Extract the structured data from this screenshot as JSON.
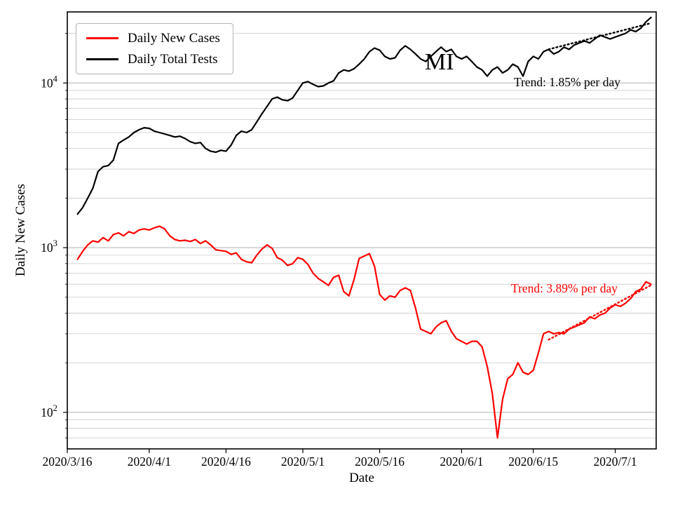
{
  "figure": {
    "background": "#ffffff",
    "axes_color": "#000000",
    "grid_major_color": "#b0b0b0",
    "grid_minor_color": "#c9c9c9"
  },
  "chart_data": {
    "type": "line",
    "state_label": "MI",
    "xlabel": "Date",
    "ylabel": "Daily New Cases",
    "y_scale": "log",
    "x_range": [
      0,
      115
    ],
    "y_range": [
      60,
      27000
    ],
    "grid": {
      "horizontal": true,
      "vertical": false,
      "minor": true
    },
    "legend_position": "upper-left",
    "x_ticks": [
      {
        "day": 0,
        "label": "2020/3/16"
      },
      {
        "day": 16,
        "label": "2020/4/1"
      },
      {
        "day": 31,
        "label": "2020/4/16"
      },
      {
        "day": 46,
        "label": "2020/5/1"
      },
      {
        "day": 61,
        "label": "2020/5/16"
      },
      {
        "day": 77,
        "label": "2020/6/1"
      },
      {
        "day": 91,
        "label": "2020/6/15"
      },
      {
        "day": 107,
        "label": "2020/7/1"
      }
    ],
    "y_ticks": [
      {
        "value": 100,
        "base": "10",
        "exp": "2"
      },
      {
        "value": 1000,
        "base": "10",
        "exp": "3"
      },
      {
        "value": 10000,
        "base": "10",
        "exp": "4"
      }
    ],
    "series": [
      {
        "name": "Daily New Cases",
        "color": "#ff0000",
        "x_unit": "days since 2020/3/16",
        "points": [
          [
            2,
            850
          ],
          [
            3,
            950
          ],
          [
            4,
            1040
          ],
          [
            5,
            1100
          ],
          [
            6,
            1080
          ],
          [
            7,
            1150
          ],
          [
            8,
            1100
          ],
          [
            9,
            1200
          ],
          [
            10,
            1230
          ],
          [
            11,
            1180
          ],
          [
            12,
            1250
          ],
          [
            13,
            1220
          ],
          [
            14,
            1280
          ],
          [
            15,
            1300
          ],
          [
            16,
            1280
          ],
          [
            17,
            1320
          ],
          [
            18,
            1350
          ],
          [
            19,
            1300
          ],
          [
            20,
            1180
          ],
          [
            21,
            1120
          ],
          [
            22,
            1100
          ],
          [
            23,
            1110
          ],
          [
            24,
            1090
          ],
          [
            25,
            1120
          ],
          [
            26,
            1060
          ],
          [
            27,
            1100
          ],
          [
            28,
            1040
          ],
          [
            29,
            970
          ],
          [
            30,
            960
          ],
          [
            31,
            950
          ],
          [
            32,
            910
          ],
          [
            33,
            930
          ],
          [
            34,
            850
          ],
          [
            35,
            820
          ],
          [
            36,
            810
          ],
          [
            37,
            900
          ],
          [
            38,
            980
          ],
          [
            39,
            1040
          ],
          [
            40,
            990
          ],
          [
            41,
            870
          ],
          [
            42,
            840
          ],
          [
            43,
            780
          ],
          [
            44,
            800
          ],
          [
            45,
            870
          ],
          [
            46,
            850
          ],
          [
            47,
            790
          ],
          [
            48,
            700
          ],
          [
            49,
            650
          ],
          [
            50,
            620
          ],
          [
            51,
            590
          ],
          [
            52,
            660
          ],
          [
            53,
            680
          ],
          [
            54,
            540
          ],
          [
            55,
            510
          ],
          [
            56,
            640
          ],
          [
            57,
            860
          ],
          [
            58,
            890
          ],
          [
            59,
            920
          ],
          [
            60,
            770
          ],
          [
            61,
            520
          ],
          [
            62,
            480
          ],
          [
            63,
            510
          ],
          [
            64,
            500
          ],
          [
            65,
            550
          ],
          [
            66,
            570
          ],
          [
            67,
            550
          ],
          [
            68,
            430
          ],
          [
            69,
            320
          ],
          [
            70,
            310
          ],
          [
            71,
            300
          ],
          [
            72,
            330
          ],
          [
            73,
            350
          ],
          [
            74,
            360
          ],
          [
            75,
            310
          ],
          [
            76,
            280
          ],
          [
            77,
            270
          ],
          [
            78,
            260
          ],
          [
            79,
            270
          ],
          [
            80,
            270
          ],
          [
            81,
            250
          ],
          [
            82,
            190
          ],
          [
            83,
            130
          ],
          [
            84,
            70
          ],
          [
            85,
            120
          ],
          [
            86,
            160
          ],
          [
            87,
            170
          ],
          [
            88,
            200
          ],
          [
            89,
            175
          ],
          [
            90,
            170
          ],
          [
            91,
            180
          ],
          [
            92,
            230
          ],
          [
            93,
            300
          ],
          [
            94,
            310
          ],
          [
            95,
            300
          ],
          [
            96,
            305
          ],
          [
            97,
            300
          ],
          [
            98,
            320
          ],
          [
            99,
            330
          ],
          [
            100,
            340
          ],
          [
            101,
            350
          ],
          [
            102,
            380
          ],
          [
            103,
            370
          ],
          [
            104,
            390
          ],
          [
            105,
            400
          ],
          [
            106,
            430
          ],
          [
            107,
            450
          ],
          [
            108,
            440
          ],
          [
            109,
            460
          ],
          [
            110,
            490
          ],
          [
            111,
            540
          ],
          [
            112,
            560
          ],
          [
            113,
            620
          ],
          [
            114,
            600
          ]
        ]
      },
      {
        "name": "Daily Total Tests",
        "color": "#000000",
        "x_unit": "days since 2020/3/16",
        "points": [
          [
            2,
            1600
          ],
          [
            3,
            1750
          ],
          [
            4,
            2000
          ],
          [
            5,
            2300
          ],
          [
            6,
            2900
          ],
          [
            7,
            3100
          ],
          [
            8,
            3150
          ],
          [
            9,
            3400
          ],
          [
            10,
            4300
          ],
          [
            11,
            4500
          ],
          [
            12,
            4700
          ],
          [
            13,
            5000
          ],
          [
            14,
            5200
          ],
          [
            15,
            5350
          ],
          [
            16,
            5300
          ],
          [
            17,
            5100
          ],
          [
            18,
            5000
          ],
          [
            19,
            4900
          ],
          [
            20,
            4800
          ],
          [
            21,
            4700
          ],
          [
            22,
            4750
          ],
          [
            23,
            4600
          ],
          [
            24,
            4400
          ],
          [
            25,
            4300
          ],
          [
            26,
            4350
          ],
          [
            27,
            4000
          ],
          [
            28,
            3850
          ],
          [
            29,
            3800
          ],
          [
            30,
            3900
          ],
          [
            31,
            3850
          ],
          [
            32,
            4200
          ],
          [
            33,
            4800
          ],
          [
            34,
            5100
          ],
          [
            35,
            5000
          ],
          [
            36,
            5200
          ],
          [
            37,
            5800
          ],
          [
            38,
            6500
          ],
          [
            39,
            7200
          ],
          [
            40,
            8000
          ],
          [
            41,
            8200
          ],
          [
            42,
            7900
          ],
          [
            43,
            7800
          ],
          [
            44,
            8100
          ],
          [
            45,
            9000
          ],
          [
            46,
            10000
          ],
          [
            47,
            10200
          ],
          [
            48,
            9800
          ],
          [
            49,
            9500
          ],
          [
            50,
            9600
          ],
          [
            51,
            10000
          ],
          [
            52,
            10300
          ],
          [
            53,
            11500
          ],
          [
            54,
            12000
          ],
          [
            55,
            11800
          ],
          [
            56,
            12200
          ],
          [
            57,
            13000
          ],
          [
            58,
            14000
          ],
          [
            59,
            15500
          ],
          [
            60,
            16300
          ],
          [
            61,
            15800
          ],
          [
            62,
            14500
          ],
          [
            63,
            14000
          ],
          [
            64,
            14200
          ],
          [
            65,
            15800
          ],
          [
            66,
            16800
          ],
          [
            67,
            16000
          ],
          [
            68,
            15000
          ],
          [
            69,
            14000
          ],
          [
            70,
            13500
          ],
          [
            71,
            14500
          ],
          [
            72,
            15500
          ],
          [
            73,
            16500
          ],
          [
            74,
            15500
          ],
          [
            75,
            16000
          ],
          [
            76,
            14500
          ],
          [
            77,
            14000
          ],
          [
            78,
            14500
          ],
          [
            79,
            13500
          ],
          [
            80,
            12500
          ],
          [
            81,
            12000
          ],
          [
            82,
            11000
          ],
          [
            83,
            12000
          ],
          [
            84,
            12500
          ],
          [
            85,
            11500
          ],
          [
            86,
            12000
          ],
          [
            87,
            13000
          ],
          [
            88,
            12500
          ],
          [
            89,
            11000
          ],
          [
            90,
            13500
          ],
          [
            91,
            14500
          ],
          [
            92,
            14000
          ],
          [
            93,
            15500
          ],
          [
            94,
            16000
          ],
          [
            95,
            15000
          ],
          [
            96,
            15500
          ],
          [
            97,
            16500
          ],
          [
            98,
            16000
          ],
          [
            99,
            17000
          ],
          [
            100,
            17500
          ],
          [
            101,
            18000
          ],
          [
            102,
            17500
          ],
          [
            103,
            18500
          ],
          [
            104,
            19500
          ],
          [
            105,
            19000
          ],
          [
            106,
            18500
          ],
          [
            107,
            19000
          ],
          [
            108,
            19500
          ],
          [
            109,
            20000
          ],
          [
            110,
            21000
          ],
          [
            111,
            20500
          ],
          [
            112,
            21500
          ],
          [
            113,
            23500
          ],
          [
            114,
            25000
          ]
        ]
      }
    ],
    "trends": [
      {
        "series": "Daily Total Tests",
        "pct_per_day": 1.85,
        "start_day": 94,
        "end_day": 114,
        "start_value": 16000,
        "color": "#000000",
        "style": "dotted"
      },
      {
        "series": "Daily New Cases",
        "pct_per_day": 3.89,
        "start_day": 94,
        "end_day": 114,
        "start_value": 276,
        "color": "#ff0000",
        "style": "dotted"
      }
    ],
    "annotations": [
      {
        "text": "Trend: 1.85% per day",
        "color": "#000000",
        "anchor_series": "Daily Total Tests"
      },
      {
        "text": "Trend: 3.89% per day",
        "color": "#ff0000",
        "anchor_series": "Daily New Cases"
      }
    ]
  }
}
